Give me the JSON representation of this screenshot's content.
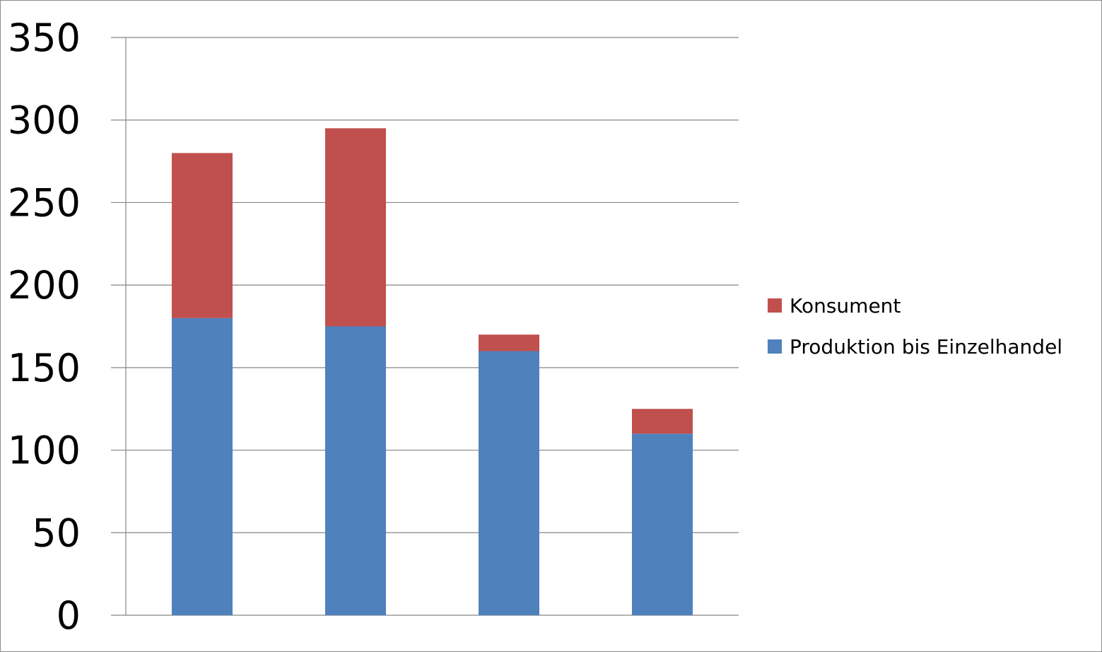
{
  "chart_data": {
    "type": "bar",
    "stacked": true,
    "categories": [
      "",
      "",
      "",
      ""
    ],
    "series": [
      {
        "name": "Produktion bis Einzelhandel",
        "color": "#4f81bd",
        "values": [
          180,
          175,
          160,
          110
        ]
      },
      {
        "name": "Konsument",
        "color": "#c0504d",
        "values": [
          100,
          120,
          10,
          15
        ]
      }
    ],
    "title": "",
    "xlabel": "",
    "ylabel": "",
    "ylim": [
      0,
      350
    ],
    "yticks": [
      "0",
      "50",
      "100",
      "150",
      "200",
      "250",
      "300",
      "350"
    ],
    "grid": true,
    "legend_position": "right",
    "legend_order": [
      "Konsument",
      "Produktion bis Einzelhandel"
    ]
  }
}
